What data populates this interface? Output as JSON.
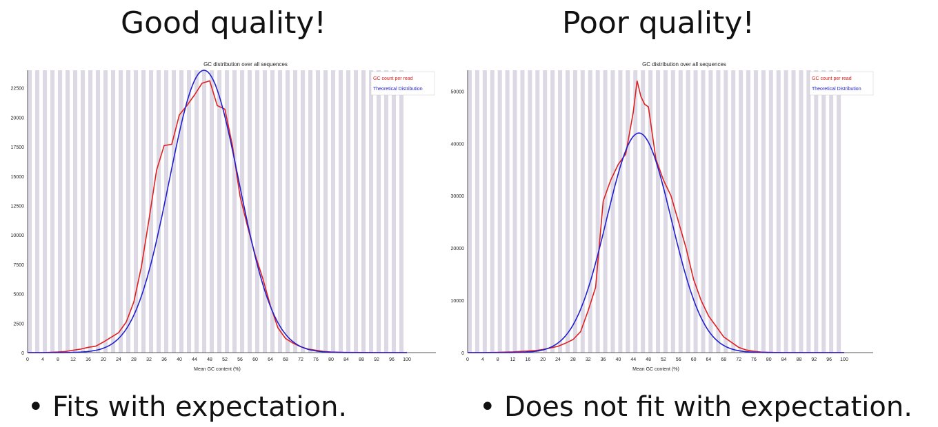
{
  "headings": {
    "left": "Good quality!",
    "right": "Poor quality!"
  },
  "bullets": {
    "marker": "•",
    "left": "Fits with expectation.",
    "right": "Does not fit with expectation."
  },
  "colors": {
    "observed": "#e02020",
    "theoretical": "#2020d0",
    "stripe": "#dcd8e4"
  },
  "chart_data": [
    {
      "type": "line",
      "title": "GC distribution over all sequences",
      "xlabel": "Mean GC content (%)",
      "ylabel": "",
      "xlim": [
        0,
        100
      ],
      "ylim": [
        0,
        24000
      ],
      "x_ticks": [
        "0",
        "4",
        "8",
        "12",
        "16",
        "20",
        "24",
        "28",
        "32",
        "36",
        "40",
        "44",
        "48",
        "52",
        "56",
        "60",
        "64",
        "68",
        "72",
        "76",
        "80",
        "84",
        "88",
        "92",
        "96",
        "100"
      ],
      "y_ticks": [
        "0",
        "2500",
        "5000",
        "7500",
        "10000",
        "12500",
        "15000",
        "17500",
        "20000",
        "22500"
      ],
      "y_tick_values": [
        0,
        2500,
        5000,
        7500,
        10000,
        12500,
        15000,
        17500,
        20000,
        22500
      ],
      "grid": "vertical stripes",
      "legend": "top-right",
      "series": [
        {
          "name": "GC count per read",
          "x": [
            0,
            4,
            8,
            10,
            12,
            14,
            16,
            18,
            20,
            22,
            24,
            26,
            28,
            30,
            32,
            34,
            36,
            38,
            40,
            42,
            44,
            46,
            48,
            50,
            52,
            54,
            56,
            58,
            60,
            62,
            64,
            66,
            68,
            70,
            72,
            74,
            76,
            78,
            80,
            84,
            88,
            92,
            96,
            100
          ],
          "y": [
            0,
            0,
            50,
            100,
            200,
            300,
            450,
            550,
            900,
            1300,
            1700,
            2600,
            4300,
            7300,
            11300,
            15500,
            17600,
            17700,
            20200,
            21000,
            21900,
            22900,
            23100,
            21000,
            20700,
            17600,
            13300,
            10700,
            8300,
            6300,
            4000,
            2100,
            1200,
            800,
            500,
            300,
            200,
            100,
            50,
            20,
            10,
            0,
            0,
            0
          ]
        },
        {
          "name": "Theoretical Distribution",
          "mean": 46.5,
          "sd": 9.2,
          "peak": 24000
        }
      ]
    },
    {
      "type": "line",
      "title": "GC distribution over all sequences",
      "xlabel": "Mean GC content (%)",
      "ylabel": "",
      "xlim": [
        0,
        100
      ],
      "ylim": [
        0,
        54000
      ],
      "x_ticks": [
        "0",
        "4",
        "8",
        "12",
        "16",
        "20",
        "24",
        "28",
        "32",
        "36",
        "40",
        "44",
        "48",
        "52",
        "56",
        "60",
        "64",
        "68",
        "72",
        "76",
        "80",
        "84",
        "88",
        "92",
        "96",
        "100"
      ],
      "y_ticks": [
        "0",
        "10000",
        "20000",
        "30000",
        "40000",
        "50000"
      ],
      "y_tick_values": [
        0,
        10000,
        20000,
        30000,
        40000,
        50000
      ],
      "grid": "vertical stripes",
      "legend": "top-right",
      "series": [
        {
          "name": "GC count per read",
          "x": [
            0,
            4,
            8,
            12,
            16,
            18,
            20,
            22,
            24,
            26,
            28,
            30,
            32,
            34,
            36,
            38,
            40,
            42,
            44,
            45,
            46,
            47,
            48,
            50,
            52,
            54,
            56,
            58,
            60,
            62,
            64,
            66,
            68,
            70,
            72,
            74,
            76,
            78,
            80,
            84,
            88,
            92,
            96,
            100
          ],
          "y": [
            0,
            0,
            50,
            150,
            300,
            400,
            600,
            900,
            1200,
            1800,
            2500,
            4000,
            8000,
            12500,
            29000,
            33000,
            36000,
            38000,
            46000,
            52000,
            49000,
            47500,
            47000,
            37000,
            33000,
            30000,
            25000,
            20000,
            14000,
            10000,
            7000,
            5000,
            3000,
            2000,
            1000,
            500,
            250,
            100,
            50,
            0,
            0,
            0,
            0,
            0
          ]
        },
        {
          "name": "Theoretical Distribution",
          "mean": 45.5,
          "sd": 8.6,
          "peak": 42000
        }
      ]
    }
  ]
}
